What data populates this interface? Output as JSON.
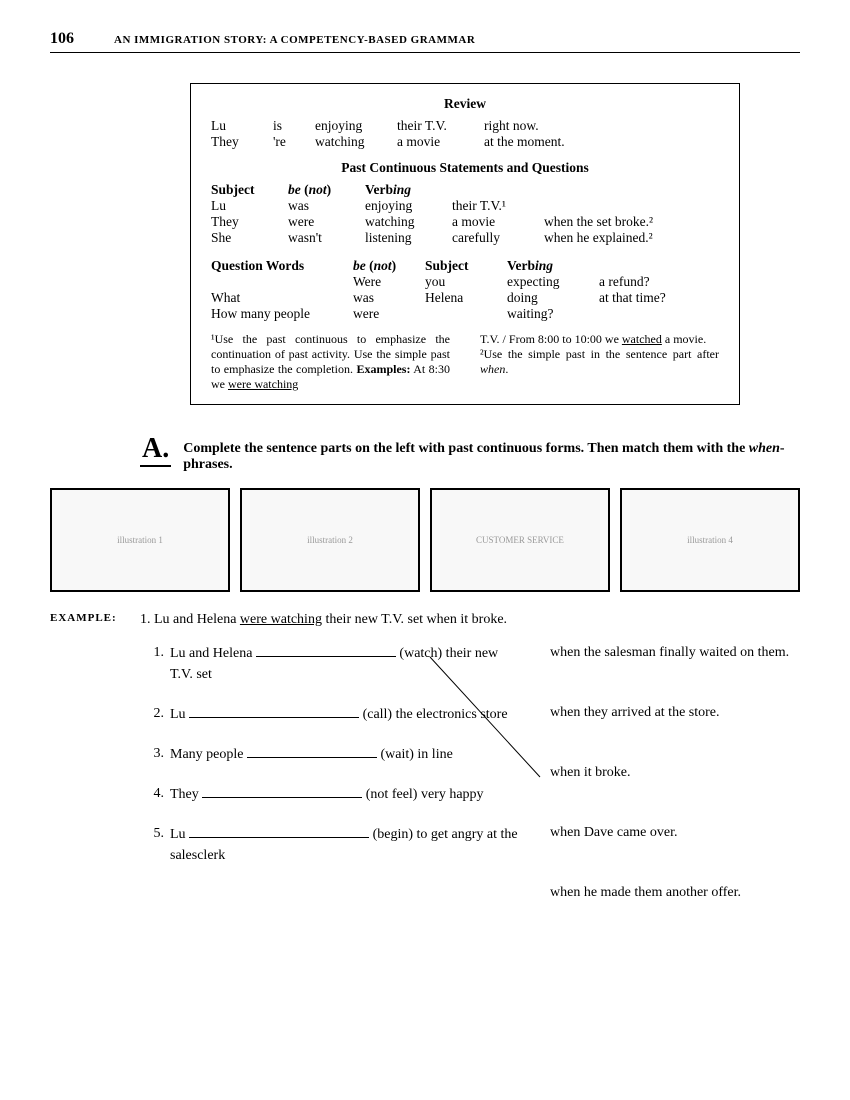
{
  "header": {
    "page_number": "106",
    "book_title": "AN IMMIGRATION STORY:   A COMPETENCY-BASED GRAMMAR"
  },
  "review_box": {
    "title": "Review",
    "review_rows": [
      [
        "Lu",
        "is",
        "enjoying",
        "their T.V.",
        "right now."
      ],
      [
        "They",
        "'re",
        "watching",
        "a movie",
        "at the moment."
      ]
    ],
    "section1_title": "Past Continuous Statements and Questions",
    "section1_headers": [
      "Subject",
      "be (not)",
      "Verbing",
      "",
      ""
    ],
    "section1_rows": [
      [
        "Lu",
        "was",
        "enjoying",
        "their T.V.¹",
        ""
      ],
      [
        "They",
        "were",
        "watching",
        "a movie",
        "when the set broke.²"
      ],
      [
        "She",
        "wasn't",
        "listening",
        "carefully",
        "when he explained.²"
      ]
    ],
    "section2_headers": [
      "Question Words",
      "be (not)",
      "Subject",
      "Verbing",
      ""
    ],
    "section2_rows": [
      [
        "",
        "Were",
        "you",
        "expecting",
        "a refund?"
      ],
      [
        "What",
        "was",
        "Helena",
        "doing",
        "at that time?"
      ],
      [
        "How many people",
        "were",
        "",
        "waiting?",
        ""
      ]
    ],
    "footnote_left": "¹Use the past continuous to emphasize the continuation of past activity. Use the simple past to emphasize the completion. Examples: At 8:30 we were watching",
    "footnote_right": "T.V. / From 8:00 to 10:00 we watched a movie.\n²Use the simple past in the sentence part after when."
  },
  "sectionA": {
    "label": "A.",
    "instruction": "Complete the sentence parts on the left with past continuous forms. Then match them with the when-phrases."
  },
  "illustrations": [
    "illustration 1",
    "illustration 2",
    "CUSTOMER SERVICE",
    "illustration 4"
  ],
  "example": {
    "label": "EXAMPLE:",
    "num": "1.",
    "text_before": "Lu and Helena ",
    "underlined": "were watching",
    "text_after": " their new T.V. set when it broke."
  },
  "exercises": {
    "left": [
      {
        "n": "1.",
        "a": "Lu and Helena ",
        "b": " (watch) their new T.V. set",
        "blank_w": 140
      },
      {
        "n": "2.",
        "a": "Lu ",
        "b": " (call) the electronics store",
        "blank_w": 170
      },
      {
        "n": "3.",
        "a": "Many people ",
        "b": " (wait) in line",
        "blank_w": 130
      },
      {
        "n": "4.",
        "a": "They ",
        "b": " (not feel) very happy",
        "blank_w": 160
      },
      {
        "n": "5.",
        "a": "Lu ",
        "b": " (begin) to get angry at the salesclerk",
        "blank_w": 180
      }
    ],
    "right": [
      "when the salesman finally waited on them.",
      "when they arrived at the store.",
      "when it broke.",
      "when Dave came over.",
      "when he made them another offer."
    ]
  }
}
